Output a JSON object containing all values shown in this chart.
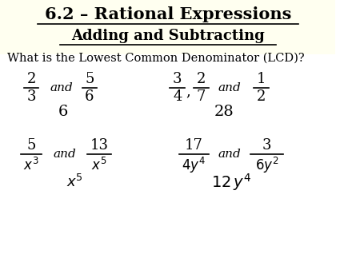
{
  "title_line1": "6.2 – Rational Expressions",
  "title_line2": "Adding and Subtracting",
  "question": "What is the Lowest Common Denominator (LCD)?",
  "background_top": "#fffff0",
  "background_bottom": "#ffffff",
  "title_color": "#000000",
  "text_color": "#000000",
  "fig_width": 4.5,
  "fig_height": 3.38,
  "dpi": 100
}
